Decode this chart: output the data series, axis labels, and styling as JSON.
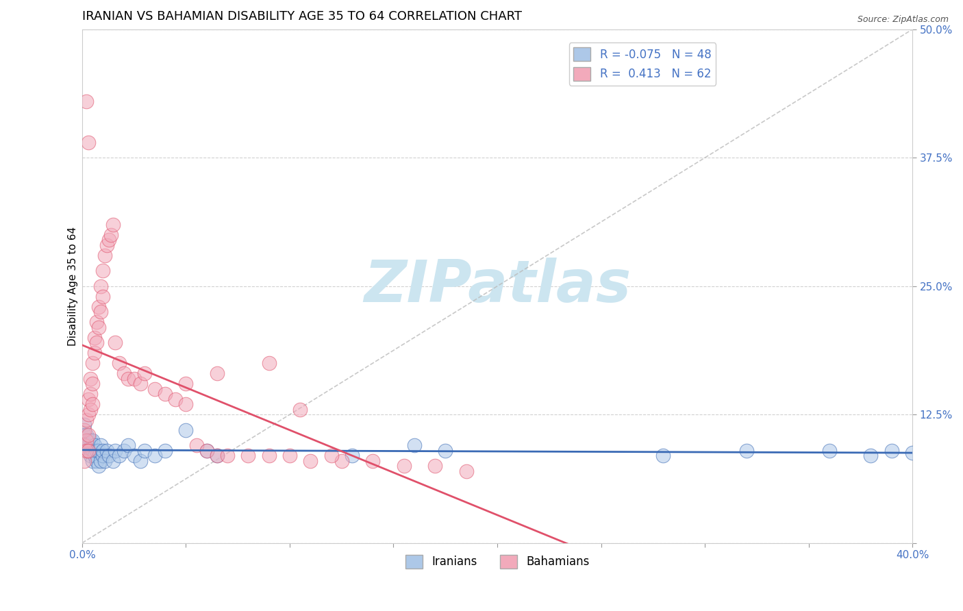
{
  "title": "IRANIAN VS BAHAMIAN DISABILITY AGE 35 TO 64 CORRELATION CHART",
  "source_text": "Source: ZipAtlas.com",
  "ylabel": "Disability Age 35 to 64",
  "xlabel": "",
  "xlim": [
    0.0,
    0.4
  ],
  "ylim": [
    0.0,
    0.5
  ],
  "xticks": [
    0.0,
    0.05,
    0.1,
    0.15,
    0.2,
    0.25,
    0.3,
    0.35,
    0.4
  ],
  "yticks": [
    0.0,
    0.125,
    0.25,
    0.375,
    0.5
  ],
  "iranian_R": -0.075,
  "iranian_N": 48,
  "bahamian_R": 0.413,
  "bahamian_N": 62,
  "iranian_color": "#adc8e8",
  "bahamian_color": "#f2aabb",
  "iranian_line_color": "#3a6ab5",
  "bahamian_line_color": "#e0506a",
  "grid_color": "#cccccc",
  "background_color": "#ffffff",
  "watermark_text": "ZIPatlas",
  "watermark_color": "#cce5f0",
  "title_fontsize": 13,
  "axis_label_fontsize": 11,
  "tick_fontsize": 11,
  "legend_fontsize": 12,
  "iranians_x": [
    0.001,
    0.001,
    0.002,
    0.002,
    0.003,
    0.003,
    0.003,
    0.004,
    0.004,
    0.004,
    0.005,
    0.005,
    0.005,
    0.006,
    0.006,
    0.007,
    0.007,
    0.008,
    0.008,
    0.009,
    0.009,
    0.01,
    0.01,
    0.011,
    0.012,
    0.013,
    0.015,
    0.016,
    0.018,
    0.02,
    0.022,
    0.025,
    0.028,
    0.03,
    0.035,
    0.04,
    0.05,
    0.06,
    0.065,
    0.13,
    0.16,
    0.175,
    0.28,
    0.32,
    0.36,
    0.38,
    0.39,
    0.4
  ],
  "iranians_y": [
    0.115,
    0.105,
    0.105,
    0.095,
    0.095,
    0.09,
    0.1,
    0.09,
    0.085,
    0.1,
    0.08,
    0.09,
    0.1,
    0.085,
    0.095,
    0.08,
    0.09,
    0.075,
    0.09,
    0.08,
    0.095,
    0.085,
    0.09,
    0.08,
    0.09,
    0.085,
    0.08,
    0.09,
    0.085,
    0.09,
    0.095,
    0.085,
    0.08,
    0.09,
    0.085,
    0.09,
    0.11,
    0.09,
    0.085,
    0.085,
    0.095,
    0.09,
    0.085,
    0.09,
    0.09,
    0.085,
    0.09,
    0.088
  ],
  "bahamians_x": [
    0.001,
    0.001,
    0.001,
    0.002,
    0.002,
    0.002,
    0.003,
    0.003,
    0.003,
    0.003,
    0.004,
    0.004,
    0.004,
    0.005,
    0.005,
    0.005,
    0.006,
    0.006,
    0.007,
    0.007,
    0.008,
    0.008,
    0.009,
    0.009,
    0.01,
    0.01,
    0.011,
    0.012,
    0.013,
    0.014,
    0.015,
    0.016,
    0.018,
    0.02,
    0.022,
    0.025,
    0.028,
    0.03,
    0.035,
    0.04,
    0.045,
    0.05,
    0.055,
    0.06,
    0.065,
    0.07,
    0.08,
    0.09,
    0.1,
    0.11,
    0.125,
    0.14,
    0.155,
    0.17,
    0.185,
    0.05,
    0.065,
    0.09,
    0.105,
    0.12,
    0.002,
    0.003
  ],
  "bahamians_y": [
    0.11,
    0.095,
    0.08,
    0.12,
    0.1,
    0.09,
    0.14,
    0.125,
    0.105,
    0.09,
    0.16,
    0.145,
    0.13,
    0.175,
    0.155,
    0.135,
    0.2,
    0.185,
    0.215,
    0.195,
    0.23,
    0.21,
    0.25,
    0.225,
    0.265,
    0.24,
    0.28,
    0.29,
    0.295,
    0.3,
    0.31,
    0.195,
    0.175,
    0.165,
    0.16,
    0.16,
    0.155,
    0.165,
    0.15,
    0.145,
    0.14,
    0.135,
    0.095,
    0.09,
    0.085,
    0.085,
    0.085,
    0.085,
    0.085,
    0.08,
    0.08,
    0.08,
    0.075,
    0.075,
    0.07,
    0.155,
    0.165,
    0.175,
    0.13,
    0.085,
    0.43,
    0.39
  ]
}
